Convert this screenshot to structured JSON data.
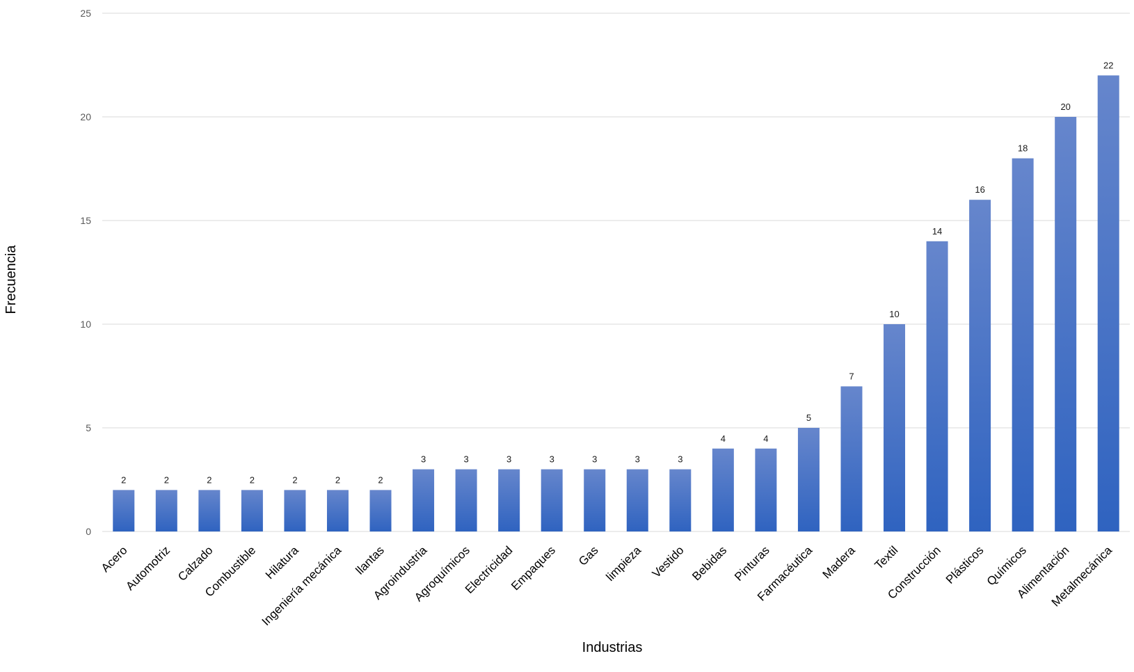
{
  "chart_data": {
    "type": "bar",
    "title": "",
    "xlabel": "Industrias",
    "ylabel": "Frecuencia",
    "ylim": [
      0,
      25
    ],
    "yticks": [
      0,
      5,
      10,
      15,
      20,
      25
    ],
    "grid": true,
    "legend": "none",
    "bar_color_top": "#6686cc",
    "bar_color_bottom": "#2f63c0",
    "categories": [
      "Acero",
      "Automotriz",
      "Calzado",
      "Combustible",
      "Hilatura",
      "Ingeniería mecánica",
      "llantas",
      "Agroindustria",
      "Agroquímicos",
      "Electricidad",
      "Empaques",
      "Gas",
      "limpieza",
      "Vestido",
      "Bebidas",
      "Pinturas",
      "Farmacéutica",
      "Madera",
      "Textil",
      "Construcción",
      "Plásticos",
      "Químicos",
      "Alimentación",
      "Metalmecánica"
    ],
    "values": [
      2,
      2,
      2,
      2,
      2,
      2,
      2,
      3,
      3,
      3,
      3,
      3,
      3,
      3,
      4,
      4,
      5,
      7,
      10,
      14,
      16,
      18,
      20,
      22
    ]
  }
}
